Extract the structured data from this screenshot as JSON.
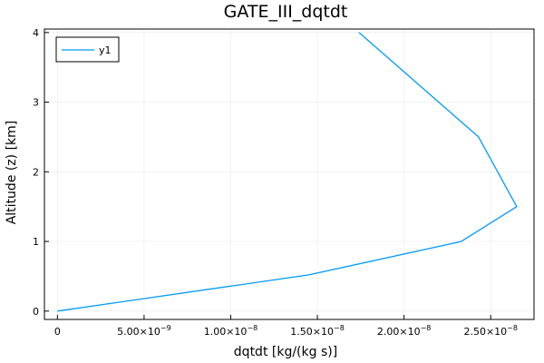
{
  "chart_data": {
    "type": "line",
    "title": "GATE_III_dqtdt",
    "xlabel": "dqtdt [kg/(kg s)]",
    "ylabel": "Altitude (z) [km]",
    "xlim": [
      -7.5e-10,
      2.75e-08
    ],
    "ylim": [
      -0.12,
      4.05
    ],
    "grid": true,
    "legend": "top-left",
    "x_ticks": [
      {
        "value": 0,
        "mantissa": "0",
        "exp": ""
      },
      {
        "value": 5e-09,
        "mantissa": "5.00×10",
        "exp": "−9"
      },
      {
        "value": 1e-08,
        "mantissa": "1.00×10",
        "exp": "−8"
      },
      {
        "value": 1.5e-08,
        "mantissa": "1.50×10",
        "exp": "−8"
      },
      {
        "value": 2e-08,
        "mantissa": "2.00×10",
        "exp": "−8"
      },
      {
        "value": 2.5e-08,
        "mantissa": "2.50×10",
        "exp": "−8"
      }
    ],
    "y_ticks": [
      {
        "value": 0,
        "label": "0"
      },
      {
        "value": 1,
        "label": "1"
      },
      {
        "value": 2,
        "label": "2"
      },
      {
        "value": 3,
        "label": "3"
      },
      {
        "value": 4,
        "label": "4"
      }
    ],
    "series": [
      {
        "name": "y1",
        "color": "#009af9",
        "x": [
          0,
          1.45e-08,
          2.33e-08,
          2.65e-08,
          2.43e-08,
          1.74e-08
        ],
        "y": [
          0,
          0.52,
          1.0,
          1.5,
          2.5,
          4.0
        ]
      }
    ]
  }
}
